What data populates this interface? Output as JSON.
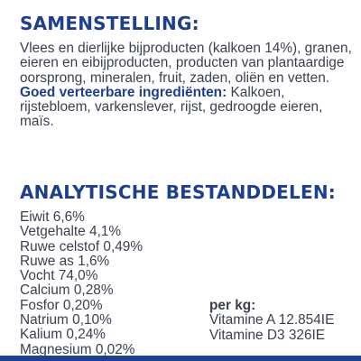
{
  "composition": {
    "heading": "SAMENSTELLING:",
    "ingredients": "Vlees en dierlijke bijproducten (kalkoen 14%), granen, eieren en eibijproducten, producten van plantaardige oorsprong, mineralen, fruit, zaden, oliën en vetten.",
    "digestible_label": "Goed verteerbare ingrediënten:",
    "digestible_text": " Kalkoen, rijstebloem, varkenslever, rijst, gedroogde eieren, maïs."
  },
  "analytical": {
    "heading": "ANALYTISCHE BESTANDDELEN:",
    "constituents": [
      "Eiwit 6,6%",
      "Vetgehalte 4,1%",
      "Ruwe celstof 0,49%",
      "Ruwe as 1,6%",
      "Vocht 74,0%",
      "Calcium 0,28%",
      "Fosfor 0,20%",
      "Natrium 0,10%",
      "Kalium 0,24%",
      "Magnesium 0,02%"
    ],
    "per_kg_label": "per kg:",
    "per_kg": [
      "Vitamine A 12.854IE",
      "Vitamine D3 326IE"
    ]
  },
  "colors": {
    "heading": "#1c3f8f",
    "text": "#3a3f52",
    "bar": "#1c3f8f"
  }
}
